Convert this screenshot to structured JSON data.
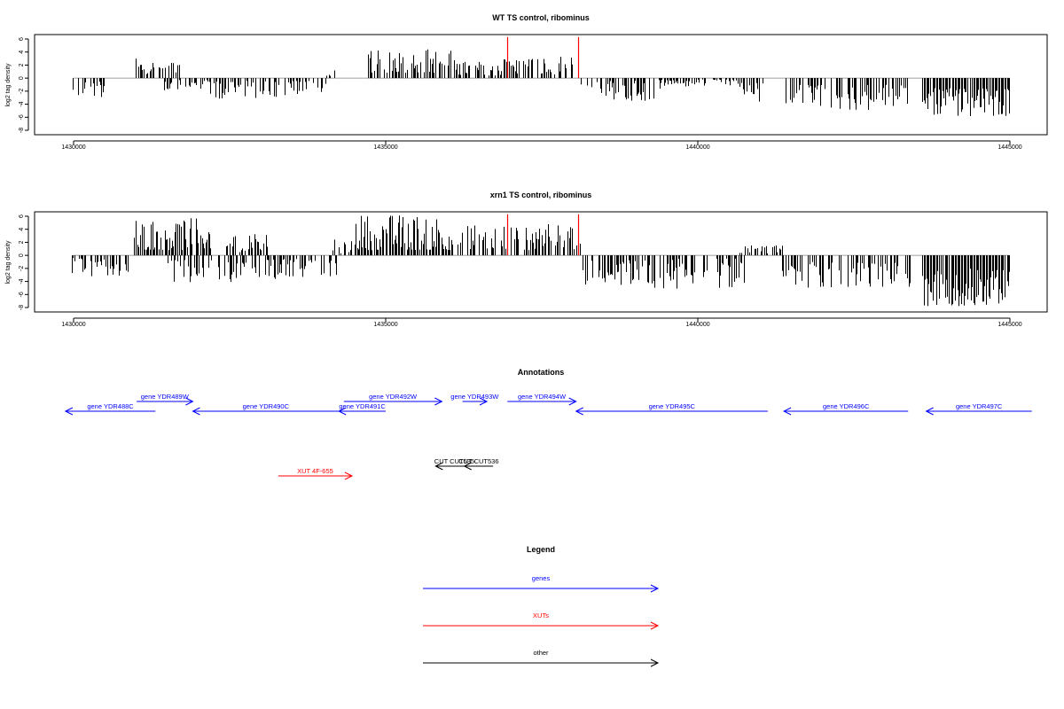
{
  "chart_data": [
    {
      "type": "bar",
      "title": "WT TS control, ribominus",
      "ylabel": "log2 tag density",
      "xlabel": "",
      "xlim": [
        1430000,
        1445000
      ],
      "ylim": [
        -8,
        6
      ],
      "x_ticks": [
        "1430000",
        "1435000",
        "1440000",
        "1445000"
      ],
      "y_ticks": [
        "6",
        "4",
        "2",
        "0",
        "-2",
        "-4",
        "-6",
        "-8"
      ],
      "colors": {
        "bars": "#000000",
        "highlight": "#ff0000",
        "baseline": "#808080"
      },
      "highlighted_positions": [
        1436940,
        1438080
      ],
      "highlight_value": 6.3,
      "regions": [
        {
          "start": 1429970,
          "end": 1430530,
          "min": 0.3,
          "max": 3.0,
          "sign": -1
        },
        {
          "start": 1430990,
          "end": 1431000,
          "min": 2.5,
          "max": 3.6,
          "sign": 1
        },
        {
          "start": 1431000,
          "end": 1431700,
          "min": 0.6,
          "max": 2.9,
          "sign": 1
        },
        {
          "start": 1431450,
          "end": 1432150,
          "min": 0.3,
          "max": 2.0,
          "sign": -1
        },
        {
          "start": 1432150,
          "end": 1434050,
          "min": 0.4,
          "max": 3.2,
          "sign": -1
        },
        {
          "start": 1434050,
          "end": 1434200,
          "min": 0.3,
          "max": 1.2,
          "sign": 1
        },
        {
          "start": 1434620,
          "end": 1436100,
          "min": 0.8,
          "max": 4.6,
          "sign": 1
        },
        {
          "start": 1436100,
          "end": 1436600,
          "min": 0.5,
          "max": 2.6,
          "sign": 1
        },
        {
          "start": 1436650,
          "end": 1438030,
          "min": 0.4,
          "max": 3.3,
          "sign": 1
        },
        {
          "start": 1438100,
          "end": 1439400,
          "min": 0.3,
          "max": 3.6,
          "sign": -1
        },
        {
          "start": 1439400,
          "end": 1440700,
          "min": 0.2,
          "max": 1.4,
          "sign": -1
        },
        {
          "start": 1440700,
          "end": 1441050,
          "min": 0.4,
          "max": 3.9,
          "sign": -1
        },
        {
          "start": 1441400,
          "end": 1443350,
          "min": 1.0,
          "max": 5.0,
          "sign": -1
        },
        {
          "start": 1443600,
          "end": 1445000,
          "min": 1.5,
          "max": 6.0,
          "sign": -1
        }
      ]
    },
    {
      "type": "bar",
      "title": "xrn1 TS control, ribominus",
      "ylabel": "log2 tag density",
      "xlabel": "",
      "xlim": [
        1430000,
        1445000
      ],
      "ylim": [
        -8,
        6
      ],
      "x_ticks": [
        "1430000",
        "1435000",
        "1440000",
        "1445000"
      ],
      "y_ticks": [
        "6",
        "4",
        "2",
        "0",
        "-2",
        "-4",
        "-6",
        "-8"
      ],
      "colors": {
        "bars": "#000000",
        "highlight": "#ff0000",
        "baseline": "#808080"
      },
      "highlighted_positions": [
        1436940,
        1438080
      ],
      "highlight_value": 6.3,
      "regions": [
        {
          "start": 1429970,
          "end": 1430900,
          "min": 0.4,
          "max": 3.4,
          "sign": -1
        },
        {
          "start": 1430950,
          "end": 1431000,
          "min": 2.5,
          "max": 4.0,
          "sign": 1
        },
        {
          "start": 1431000,
          "end": 1432200,
          "min": 0.8,
          "max": 5.8,
          "sign": 1
        },
        {
          "start": 1431500,
          "end": 1433050,
          "min": 0.5,
          "max": 4.1,
          "sign": -1
        },
        {
          "start": 1432400,
          "end": 1433100,
          "min": 0.5,
          "max": 3.3,
          "sign": 1
        },
        {
          "start": 1433050,
          "end": 1434300,
          "min": 0.5,
          "max": 3.7,
          "sign": -1
        },
        {
          "start": 1434150,
          "end": 1434450,
          "min": 0.3,
          "max": 3.0,
          "sign": 1
        },
        {
          "start": 1434500,
          "end": 1435850,
          "min": 0.8,
          "max": 6.3,
          "sign": 1
        },
        {
          "start": 1435850,
          "end": 1438150,
          "min": 0.8,
          "max": 4.9,
          "sign": 1
        },
        {
          "start": 1438150,
          "end": 1440750,
          "min": 0.5,
          "max": 5.1,
          "sign": -1
        },
        {
          "start": 1440650,
          "end": 1441350,
          "min": 0.3,
          "max": 1.6,
          "sign": 1
        },
        {
          "start": 1441350,
          "end": 1443400,
          "min": 1.0,
          "max": 5.0,
          "sign": -1
        },
        {
          "start": 1443600,
          "end": 1445000,
          "min": 2.0,
          "max": 7.8,
          "sign": -1
        }
      ]
    }
  ],
  "annotations": {
    "title": "Annotations",
    "genes": [
      {
        "label": "gene YDR488C",
        "strand": "-",
        "start": 1429870,
        "end": 1431310,
        "row": 1
      },
      {
        "label": "gene YDR489W",
        "strand": "+",
        "start": 1431010,
        "end": 1431910,
        "row": 0
      },
      {
        "label": "gene YDR490C",
        "strand": "-",
        "start": 1431910,
        "end": 1434250,
        "row": 1
      },
      {
        "label": "gene YDR491C",
        "strand": "-",
        "start": 1434250,
        "end": 1435000,
        "row": 1
      },
      {
        "label": "gene YDR492W",
        "strand": "+",
        "start": 1434330,
        "end": 1435900,
        "row": 0
      },
      {
        "label": "gene YDR493W",
        "strand": "+",
        "start": 1436230,
        "end": 1436620,
        "row": 0
      },
      {
        "label": "gene YDR494W",
        "strand": "+",
        "start": 1436950,
        "end": 1438050,
        "row": 0
      },
      {
        "label": "gene YDR495C",
        "strand": "-",
        "start": 1438050,
        "end": 1441120,
        "row": 1
      },
      {
        "label": "gene YDR496C",
        "strand": "-",
        "start": 1441380,
        "end": 1443370,
        "row": 1
      },
      {
        "label": "gene YDR497C",
        "strand": "-",
        "start": 1443660,
        "end": 1445350,
        "row": 1
      }
    ],
    "xuts": [
      {
        "label": "XUT 4F-655",
        "strand": "+",
        "start": 1433280,
        "end": 1434460
      }
    ],
    "others": [
      {
        "label": "CUT CUT535",
        "strand": "-",
        "start": 1435800,
        "end": 1436400
      },
      {
        "label": "CUT CUT536",
        "strand": "-",
        "start": 1436260,
        "end": 1436720
      }
    ]
  },
  "legend": {
    "title": "Legend",
    "items": [
      {
        "label": "genes",
        "color": "#0000ff"
      },
      {
        "label": "XUTs",
        "color": "#ff0000"
      },
      {
        "label": "other",
        "color": "#000000"
      }
    ]
  }
}
